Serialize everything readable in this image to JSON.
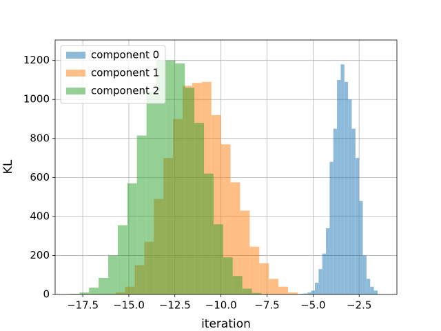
{
  "chart_data": {
    "type": "histogram",
    "xlabel": "iteration",
    "ylabel": "KL",
    "xlim": [
      -19.0,
      -0.45
    ],
    "ylim": [
      0,
      1305
    ],
    "xticks": [
      {
        "value": -17.5,
        "label": "−17.5"
      },
      {
        "value": -15,
        "label": "−15.0"
      },
      {
        "value": -12.5,
        "label": "−12.5"
      },
      {
        "value": -10,
        "label": "−10.0"
      },
      {
        "value": -7.5,
        "label": "−7.5"
      },
      {
        "value": -5,
        "label": "−5.0"
      },
      {
        "value": -2.5,
        "label": "−2.5"
      }
    ],
    "yticks": [
      0,
      200,
      400,
      600,
      800,
      1000,
      1200
    ],
    "grid": true,
    "legend": "upper left",
    "opacity": 0.5,
    "series": [
      {
        "name": "component 0",
        "color": "#1f77b4",
        "bins": [
          -5.7,
          -5.5,
          -5.3,
          -5.1,
          -4.9,
          -4.7,
          -4.5,
          -4.3,
          -4.1,
          -3.9,
          -3.7,
          -3.5,
          -3.3,
          -3.1,
          -2.9,
          -2.7,
          -2.5,
          -2.3,
          -2.1,
          -1.9,
          -1.7,
          -1.5
        ],
        "values": [
          3,
          5,
          10,
          20,
          60,
          130,
          210,
          340,
          680,
          850,
          1100,
          1180,
          1090,
          1000,
          850,
          700,
          480,
          200,
          80,
          40,
          20
        ]
      },
      {
        "name": "component 1",
        "color": "#ff7f0e",
        "bins": [
          -15.72,
          -15.2,
          -14.68,
          -14.16,
          -13.64,
          -13.12,
          -12.6,
          -12.08,
          -11.56,
          -11.04,
          -10.52,
          -10.0,
          -9.48,
          -8.96,
          -8.44,
          -7.92,
          -7.4,
          -6.88,
          -6.36,
          -5.84
        ],
        "values": [
          10,
          40,
          150,
          270,
          490,
          700,
          900,
          1070,
          1085,
          1090,
          920,
          770,
          575,
          430,
          245,
          160,
          80,
          40,
          10
        ]
      },
      {
        "name": "component 2",
        "color": "#2ca02c",
        "bins": [
          -18.2,
          -17.68,
          -17.16,
          -16.64,
          -16.12,
          -15.6,
          -15.08,
          -14.56,
          -14.04,
          -13.52,
          -13.0,
          -12.48,
          -11.96,
          -11.44,
          -10.92,
          -10.4,
          -9.88,
          -9.36,
          -8.84,
          -8.32,
          -7.8
        ],
        "values": [
          3,
          10,
          35,
          85,
          200,
          355,
          570,
          815,
          1040,
          1200,
          1200,
          1185,
          1060,
          880,
          620,
          360,
          190,
          95,
          30,
          8
        ]
      }
    ]
  }
}
